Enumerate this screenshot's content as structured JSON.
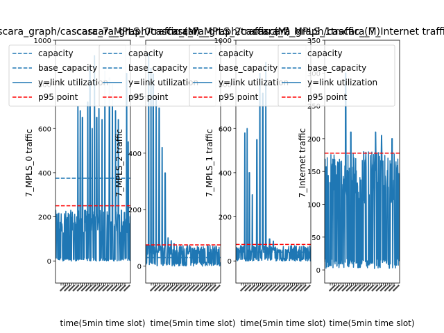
{
  "chart_data": [
    {
      "type": "line",
      "title": "cascara_graph/cascara_7_MPLS_0traffic_(M)",
      "xlabel": "time(5min time slot)",
      "ylabel": "7_MPLS_0 traffic",
      "ylim": [
        -100,
        1000
      ],
      "yticks": [
        0,
        200,
        400,
        600,
        800,
        1000
      ],
      "xlim": [
        0,
        300
      ],
      "legend": [
        "capacity",
        "base_capacity",
        "y=link utilization",
        "p95 point"
      ],
      "legend_placement": "top-left",
      "capacity": 375,
      "base_capacity": 375,
      "p95": 250,
      "util": {
        "low": 0,
        "band_hi": 230,
        "spike_hi": 1000,
        "spikes": [
          [
            0.3,
            700
          ],
          [
            0.33,
            680
          ],
          [
            0.36,
            650
          ],
          [
            0.4,
            230
          ],
          [
            0.43,
            720
          ],
          [
            0.46,
            880
          ],
          [
            0.49,
            600
          ],
          [
            0.52,
            930
          ],
          [
            0.55,
            650
          ],
          [
            0.58,
            690
          ],
          [
            0.62,
            640
          ],
          [
            0.66,
            860
          ],
          [
            0.72,
            830
          ],
          [
            0.76,
            800
          ],
          [
            0.8,
            680
          ],
          [
            0.84,
            640
          ],
          [
            0.88,
            230
          ],
          [
            0.92,
            220
          ],
          [
            0.95,
            850
          ],
          [
            0.97,
            540
          ]
        ]
      },
      "colors": {
        "capacity": "#1f77b4",
        "base_capacity": "#1f77b4",
        "util": "#1f77b4",
        "p95": "#ff0000"
      }
    },
    {
      "type": "line",
      "title": "cascara_graph/cascara_7_MPLS_2traffic_(M)",
      "xlabel": "time(5min time slot)",
      "ylabel": "7_MPLS_2 traffic",
      "ylim": [
        -60,
        800
      ],
      "yticks": [
        0,
        200,
        400,
        600
      ],
      "xlim": [
        0,
        300
      ],
      "legend": [
        "capacity",
        "base_capacity",
        "y=link utilization",
        "p95 point"
      ],
      "legend_placement": "top-left",
      "capacity": 30,
      "base_capacity": 30,
      "p95": 75,
      "util": {
        "low": 0,
        "band_hi": 75,
        "spike_hi": 760,
        "spikes": [
          [
            0.04,
            750
          ],
          [
            0.07,
            700
          ],
          [
            0.1,
            680
          ],
          [
            0.14,
            600
          ],
          [
            0.18,
            560
          ],
          [
            0.22,
            420
          ],
          [
            0.26,
            330
          ],
          [
            0.3,
            100
          ],
          [
            0.34,
            90
          ],
          [
            0.38,
            80
          ]
        ]
      },
      "colors": {
        "capacity": "#1f77b4",
        "base_capacity": "#1f77b4",
        "util": "#1f77b4",
        "p95": "#ff0000"
      }
    },
    {
      "type": "line",
      "title": "cascara_graph/cascara_7_MPLS_1traffic_(M)",
      "xlabel": "time(5min time slot)",
      "ylabel": "7_MPLS_1 traffic",
      "ylim": [
        -100,
        1000
      ],
      "yticks": [
        0,
        200,
        400,
        600,
        800,
        1000
      ],
      "xlim": [
        0,
        300
      ],
      "legend": [
        "capacity",
        "base_capacity",
        "y=link utilization",
        "p95 point"
      ],
      "legend_placement": "top-left",
      "capacity": 40,
      "base_capacity": 40,
      "p95": 75,
      "util": {
        "low": 0,
        "band_hi": 70,
        "spike_hi": 1000,
        "spikes": [
          [
            0.12,
            580
          ],
          [
            0.15,
            600
          ],
          [
            0.18,
            400
          ],
          [
            0.22,
            300
          ],
          [
            0.28,
            550
          ],
          [
            0.32,
            850
          ],
          [
            0.36,
            760
          ],
          [
            0.4,
            900
          ],
          [
            0.45,
            100
          ],
          [
            0.5,
            90
          ]
        ]
      },
      "colors": {
        "capacity": "#1f77b4",
        "base_capacity": "#1f77b4",
        "util": "#1f77b4",
        "p95": "#ff0000"
      }
    },
    {
      "type": "line",
      "title": "cascara_graph/cascara_7_Internet traffic_(M)",
      "xlabel": "time(5min time slot)",
      "ylabel": "7_Internet traffic",
      "ylim": [
        -20,
        350
      ],
      "yticks": [
        0,
        50,
        100,
        150,
        200,
        250,
        300,
        350
      ],
      "xlim": [
        0,
        300
      ],
      "legend": [
        "capacity",
        "base_capacity",
        "y=link utilization",
        "p95 point"
      ],
      "legend_placement": "top-left",
      "capacity": 178,
      "base_capacity": 178,
      "p95": 178,
      "util": {
        "low": 2,
        "band_hi": 178,
        "spike_hi": 300,
        "spikes": [
          [
            0.28,
            300
          ],
          [
            0.35,
            210
          ],
          [
            0.52,
            180
          ],
          [
            0.68,
            210
          ],
          [
            0.76,
            205
          ],
          [
            0.9,
            200
          ]
        ]
      },
      "colors": {
        "capacity": "#1f77b4",
        "base_capacity": "#1f77b4",
        "util": "#1f77b4",
        "p95": "#ff0000"
      }
    }
  ]
}
